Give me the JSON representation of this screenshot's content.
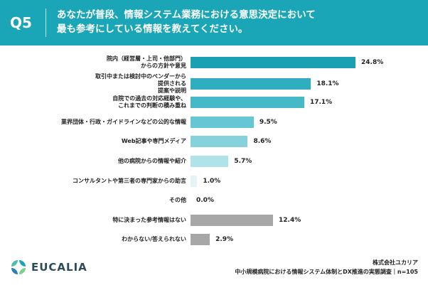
{
  "header": {
    "q_label": "Q5",
    "title_line1": "あなたが普段、情報システム業務における意思決定において",
    "title_line2": "最も参考にしている情報を教えてください。",
    "bg_color": "#1aa6b7"
  },
  "chart_data": {
    "type": "bar",
    "orientation": "horizontal",
    "unit": "%",
    "xlim": [
      0,
      24.8
    ],
    "categories": [
      [
        "院内（経営層・上司・他部門）",
        "からの方針や意見"
      ],
      [
        "取引中または検討中のベンダーから",
        "提供される",
        "提案や説明"
      ],
      [
        "自院での過去の対応経験や、",
        "これまでの判断の積み重ね"
      ],
      [
        "業界団体・行政・ガイドラインなどの公的な情報"
      ],
      [
        "Web記事や専門メディア"
      ],
      [
        "他の病院からの情報や紹介"
      ],
      [
        "コンサルタントや第三者の専門家からの助言"
      ],
      [
        "その他"
      ],
      [
        "特に決まった参考情報はない"
      ],
      [
        "わからない/答えられない"
      ]
    ],
    "values": [
      24.8,
      18.1,
      17.1,
      9.5,
      8.6,
      5.7,
      1.0,
      0.0,
      12.4,
      2.9
    ],
    "value_labels": [
      "24.8%",
      "18.1%",
      "17.1%",
      "9.5%",
      "8.6%",
      "5.7%",
      "1.0%",
      "0.0%",
      "12.4%",
      "2.9%"
    ],
    "colors": [
      "#1a9fb3",
      "#2eaebf",
      "#46b9c8",
      "#67c6d3",
      "#86d2dc",
      "#b0e2e9",
      "#e4f4f6",
      "#e4f4f6",
      "#a7a7a7",
      "#a7a7a7"
    ]
  },
  "footer": {
    "brand": "EUCALIA",
    "company": "株式会社ユカリア",
    "source": "中小規模病院における情報システム体制とDX推進の実態調査｜n=105"
  }
}
